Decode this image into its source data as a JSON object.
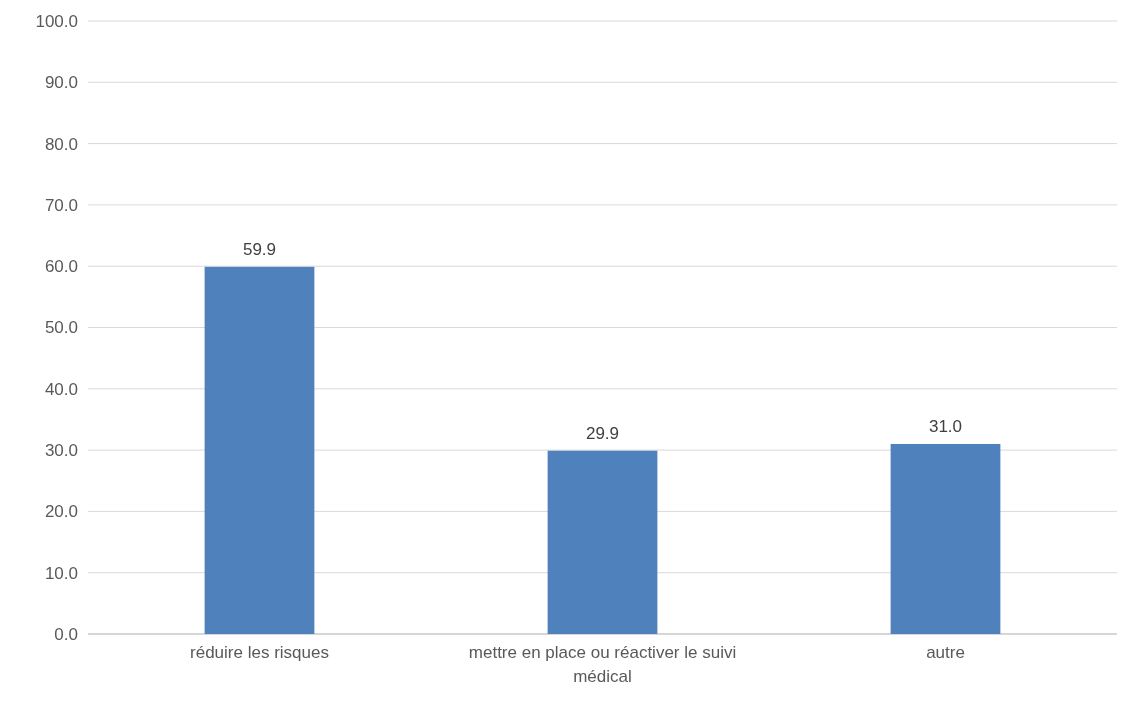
{
  "chart_data": {
    "type": "bar",
    "categories": [
      "réduire les risques",
      "mettre en place ou réactiver le suivi médical",
      "autre"
    ],
    "values": [
      59.9,
      29.9,
      31.0
    ],
    "value_labels": [
      "59.9",
      "29.9",
      "31.0"
    ],
    "color": "#4f81bd",
    "ylim": [
      0,
      100
    ],
    "yticks": [
      {
        "value": 0,
        "label": "0.0"
      },
      {
        "value": 10,
        "label": "10.0"
      },
      {
        "value": 20,
        "label": "20.0"
      },
      {
        "value": 30,
        "label": "30.0"
      },
      {
        "value": 40,
        "label": "40.0"
      },
      {
        "value": 50,
        "label": "50.0"
      },
      {
        "value": 60,
        "label": "60.0"
      },
      {
        "value": 70,
        "label": "70.0"
      },
      {
        "value": 80,
        "label": "80.0"
      },
      {
        "value": 90,
        "label": "90.0"
      },
      {
        "value": 100,
        "label": "100.0"
      }
    ],
    "grid": "y"
  }
}
